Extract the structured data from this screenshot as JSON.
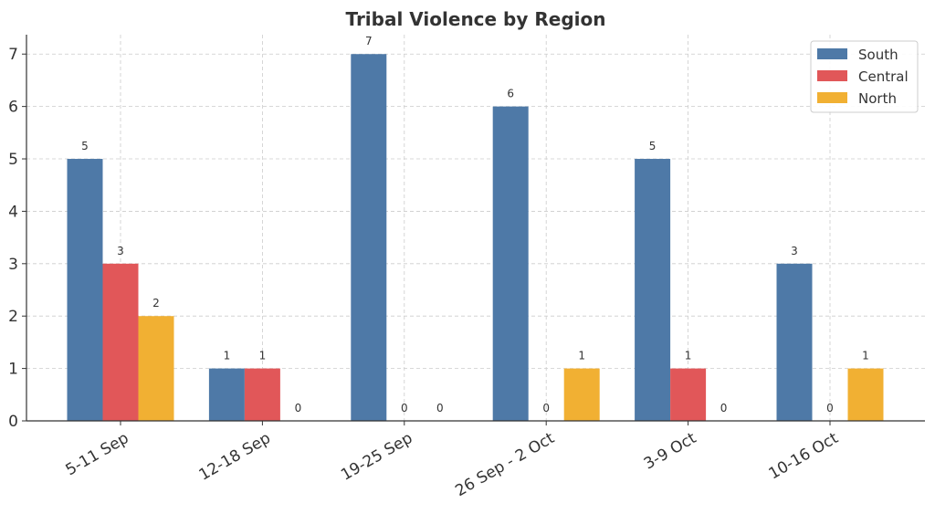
{
  "chart_data": {
    "type": "bar",
    "title": "Tribal Violence by Region",
    "xlabel": "",
    "ylabel": "",
    "categories": [
      "5-11 Sep",
      "12-18 Sep",
      "19-25 Sep",
      "26 Sep - 2 Oct",
      "3-9 Oct",
      "10-16 Oct"
    ],
    "series": [
      {
        "name": "South",
        "color": "#4e79a7",
        "values": [
          5,
          1,
          7,
          6,
          5,
          3
        ]
      },
      {
        "name": "Central",
        "color": "#e15759",
        "values": [
          3,
          1,
          0,
          0,
          1,
          0
        ]
      },
      {
        "name": "North",
        "color": "#f1b033",
        "values": [
          2,
          0,
          0,
          1,
          0,
          1
        ]
      }
    ],
    "ylim": [
      0,
      7.37
    ],
    "yticks": [
      0,
      1,
      2,
      3,
      4,
      5,
      6,
      7
    ],
    "grid": true,
    "legend_position": "top-right",
    "data_labels": true
  }
}
